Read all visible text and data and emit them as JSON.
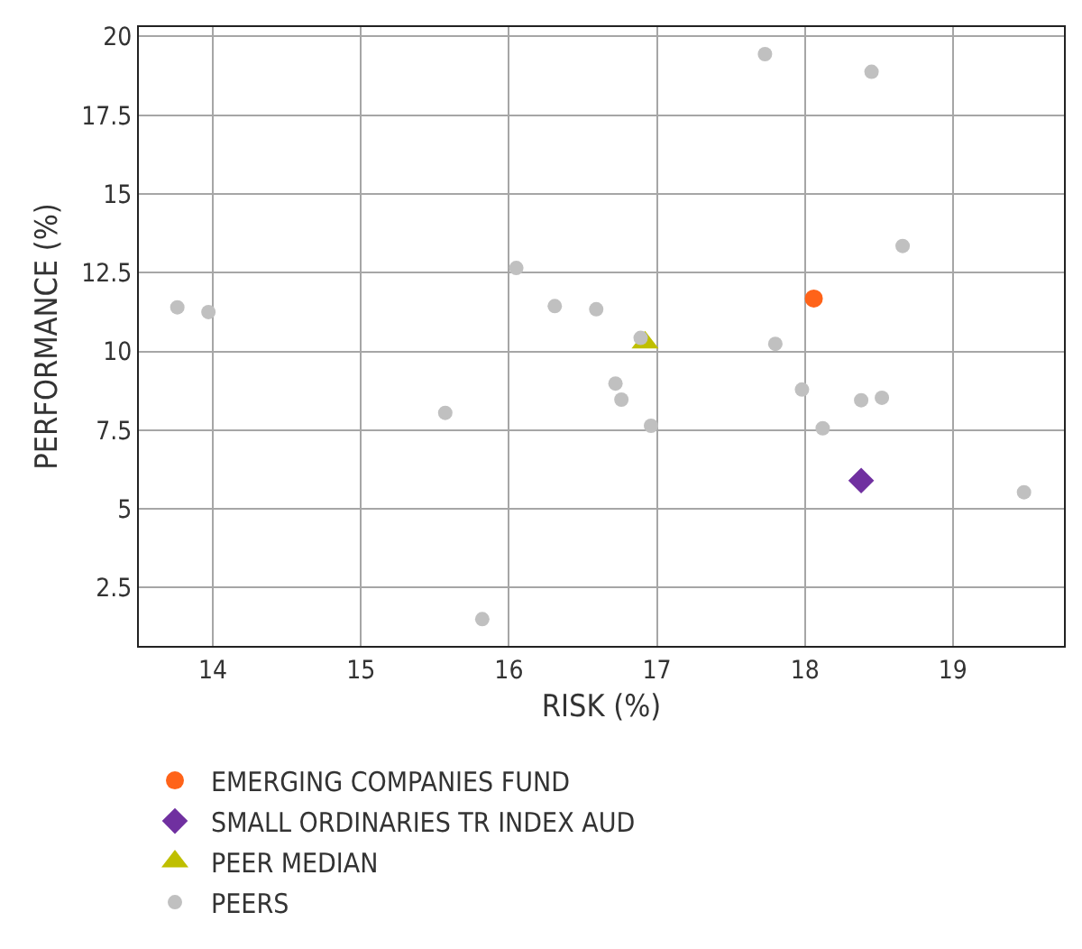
{
  "chart_data": {
    "type": "scatter",
    "xlabel": "RISK (%)",
    "ylabel": "PERFORMANCE (%)",
    "xlim": [
      13.5,
      19.75
    ],
    "xticks": [
      14,
      15,
      16,
      17,
      18,
      19
    ],
    "ylim": [
      0.65,
      20.3
    ],
    "yticks": [
      2.5,
      5,
      7.5,
      10,
      12.5,
      15,
      17.5,
      20
    ],
    "grid": true,
    "legend": "bottom",
    "series": [
      {
        "name": "EMERGING COMPANIES FUND",
        "color": "#ff6319",
        "marker": "circle",
        "x": [
          18.06
        ],
        "values": [
          11.68
        ]
      },
      {
        "name": "SMALL ORDINARIES TR INDEX AUD",
        "color": "#7030a0",
        "marker": "diamond",
        "x": [
          18.38
        ],
        "values": [
          5.9
        ]
      },
      {
        "name": "PEER MEDIAN",
        "color": "#bfbf00",
        "marker": "triangle",
        "x": [
          16.92
        ],
        "values": [
          10.28
        ]
      },
      {
        "name": "PEERS",
        "color": "#c0c0c0",
        "marker": "circle",
        "x": [
          13.76,
          13.97,
          15.57,
          15.82,
          16.05,
          16.31,
          16.59,
          16.89,
          16.72,
          16.76,
          16.96,
          17.73,
          18.45,
          18.66,
          17.8,
          17.98,
          18.12,
          18.38,
          18.52,
          19.48
        ],
        "values": [
          11.4,
          11.25,
          8.05,
          1.5,
          12.65,
          11.44,
          11.34,
          10.43,
          8.98,
          8.47,
          7.64,
          19.44,
          18.88,
          13.35,
          10.24,
          8.79,
          7.56,
          8.45,
          8.53,
          5.53
        ]
      }
    ]
  }
}
